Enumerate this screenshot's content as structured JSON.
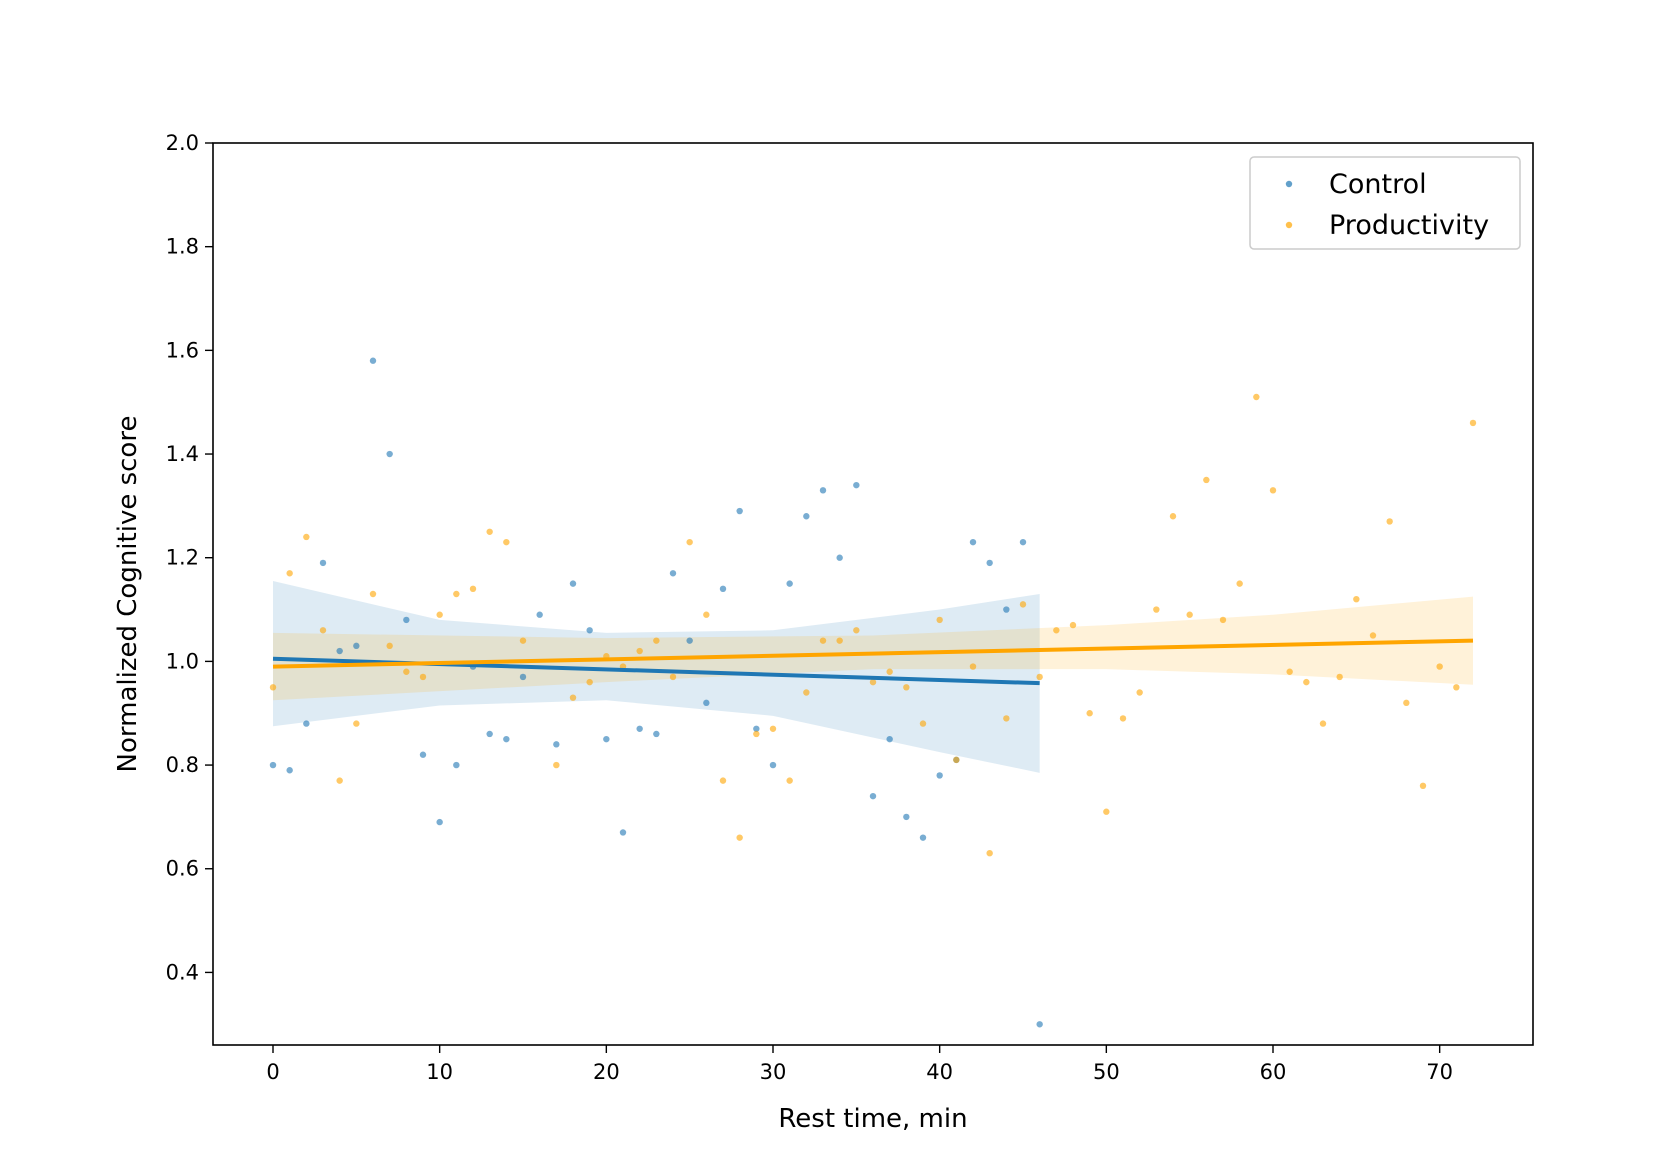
{
  "chart_data": {
    "type": "scatter",
    "xlabel": "Rest time, min",
    "ylabel": "Normalized Cognitive score",
    "xlim": [
      -3.6,
      75.6
    ],
    "ylim": [
      0.26,
      2.0
    ],
    "xticks": [
      0,
      10,
      20,
      30,
      40,
      50,
      60,
      70
    ],
    "yticks": [
      0.4,
      0.6,
      0.8,
      1.0,
      1.2,
      1.4,
      1.6,
      1.8,
      2.0
    ],
    "grid": false,
    "legend_position": "top-right",
    "series": [
      {
        "name": "Control",
        "color": "#1f77b4",
        "points": [
          [
            0,
            0.8
          ],
          [
            1,
            0.79
          ],
          [
            2,
            0.88
          ],
          [
            3,
            1.19
          ],
          [
            4,
            1.02
          ],
          [
            5,
            1.03
          ],
          [
            6,
            1.58
          ],
          [
            7,
            1.4
          ],
          [
            8,
            1.08
          ],
          [
            9,
            0.82
          ],
          [
            10,
            0.69
          ],
          [
            11,
            0.8
          ],
          [
            12,
            0.99
          ],
          [
            13,
            0.86
          ],
          [
            14,
            0.85
          ],
          [
            15,
            0.97
          ],
          [
            16,
            1.09
          ],
          [
            17,
            0.84
          ],
          [
            18,
            1.15
          ],
          [
            19,
            1.06
          ],
          [
            20,
            0.85
          ],
          [
            21,
            0.67
          ],
          [
            22,
            0.87
          ],
          [
            23,
            0.86
          ],
          [
            24,
            1.17
          ],
          [
            25,
            1.04
          ],
          [
            26,
            0.92
          ],
          [
            27,
            1.14
          ],
          [
            28,
            1.29
          ],
          [
            29,
            0.87
          ],
          [
            30,
            0.8
          ],
          [
            31,
            1.15
          ],
          [
            32,
            1.28
          ],
          [
            33,
            1.33
          ],
          [
            34,
            1.2
          ],
          [
            35,
            1.34
          ],
          [
            36,
            0.74
          ],
          [
            37,
            0.85
          ],
          [
            38,
            0.7
          ],
          [
            39,
            0.66
          ],
          [
            40,
            0.78
          ],
          [
            41,
            0.81
          ],
          [
            42,
            1.23
          ],
          [
            43,
            1.19
          ],
          [
            44,
            1.1
          ],
          [
            45,
            1.23
          ],
          [
            46,
            0.3
          ]
        ],
        "fit": {
          "x": [
            0,
            46
          ],
          "y": [
            1.005,
            0.958
          ]
        },
        "ci_band": {
          "x": [
            0,
            10,
            20,
            30,
            40,
            46
          ],
          "upper": [
            1.155,
            1.08,
            1.055,
            1.06,
            1.1,
            1.13
          ],
          "lower": [
            0.875,
            0.915,
            0.925,
            0.895,
            0.825,
            0.785
          ]
        }
      },
      {
        "name": "Productivity",
        "color": "#ffa500",
        "points": [
          [
            0,
            0.95
          ],
          [
            1,
            1.17
          ],
          [
            2,
            1.24
          ],
          [
            3,
            1.06
          ],
          [
            4,
            0.77
          ],
          [
            5,
            0.88
          ],
          [
            6,
            1.13
          ],
          [
            7,
            1.03
          ],
          [
            8,
            0.98
          ],
          [
            9,
            0.97
          ],
          [
            10,
            1.09
          ],
          [
            11,
            1.13
          ],
          [
            12,
            1.14
          ],
          [
            13,
            1.25
          ],
          [
            14,
            1.23
          ],
          [
            15,
            1.04
          ],
          [
            17,
            0.8
          ],
          [
            18,
            0.93
          ],
          [
            19,
            0.96
          ],
          [
            20,
            1.01
          ],
          [
            21,
            0.99
          ],
          [
            22,
            1.02
          ],
          [
            23,
            1.04
          ],
          [
            24,
            0.97
          ],
          [
            25,
            1.23
          ],
          [
            26,
            1.09
          ],
          [
            27,
            0.77
          ],
          [
            28,
            0.66
          ],
          [
            29,
            0.86
          ],
          [
            30,
            0.87
          ],
          [
            31,
            0.77
          ],
          [
            32,
            0.94
          ],
          [
            33,
            1.04
          ],
          [
            34,
            1.04
          ],
          [
            35,
            1.06
          ],
          [
            36,
            0.96
          ],
          [
            37,
            0.98
          ],
          [
            38,
            0.95
          ],
          [
            39,
            0.88
          ],
          [
            40,
            1.08
          ],
          [
            41,
            0.81
          ],
          [
            42,
            0.99
          ],
          [
            43,
            0.63
          ],
          [
            44,
            0.89
          ],
          [
            45,
            1.11
          ],
          [
            46,
            0.97
          ],
          [
            47,
            1.06
          ],
          [
            48,
            1.07
          ],
          [
            49,
            0.9
          ],
          [
            50,
            0.71
          ],
          [
            51,
            0.89
          ],
          [
            52,
            0.94
          ],
          [
            53,
            1.1
          ],
          [
            54,
            1.28
          ],
          [
            55,
            1.09
          ],
          [
            56,
            1.35
          ],
          [
            57,
            1.08
          ],
          [
            58,
            1.15
          ],
          [
            59,
            1.51
          ],
          [
            60,
            1.33
          ],
          [
            61,
            0.98
          ],
          [
            62,
            0.96
          ],
          [
            63,
            0.88
          ],
          [
            64,
            0.97
          ],
          [
            65,
            1.12
          ],
          [
            66,
            1.05
          ],
          [
            67,
            1.27
          ],
          [
            68,
            0.92
          ],
          [
            69,
            0.76
          ],
          [
            70,
            0.99
          ],
          [
            71,
            0.95
          ],
          [
            72,
            1.46
          ]
        ],
        "fit": {
          "x": [
            0,
            72
          ],
          "y": [
            0.99,
            1.04
          ]
        },
        "ci_band": {
          "x": [
            0,
            20,
            36,
            50,
            60,
            72
          ],
          "upper": [
            1.055,
            1.045,
            1.05,
            1.07,
            1.09,
            1.125
          ],
          "lower": [
            0.925,
            0.96,
            0.985,
            0.985,
            0.975,
            0.955
          ]
        }
      }
    ]
  }
}
